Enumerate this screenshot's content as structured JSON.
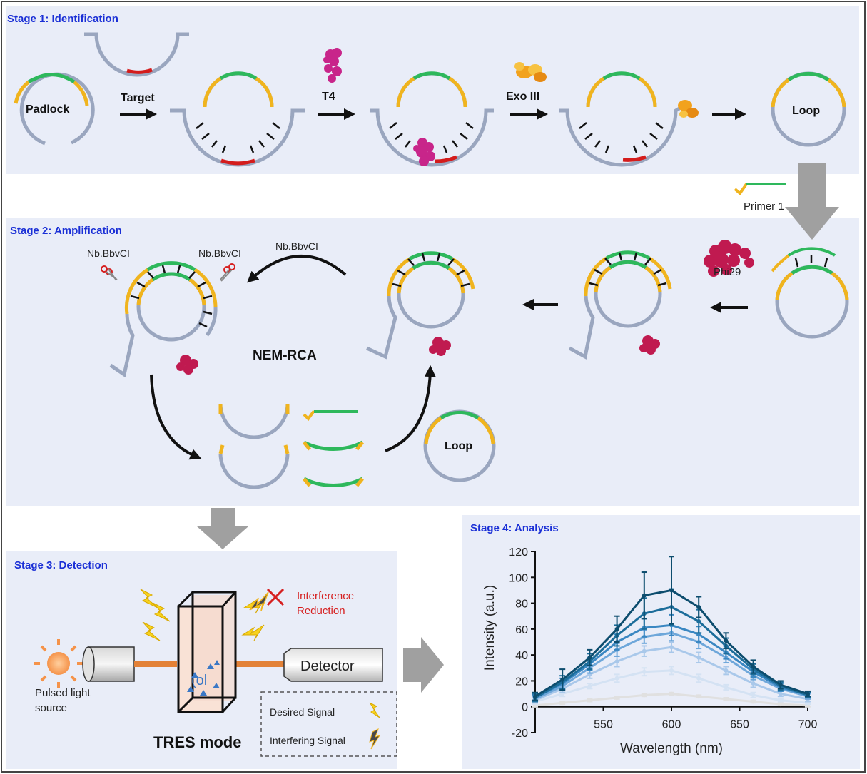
{
  "stages": {
    "s1": "Stage 1: Identification",
    "s2": "Stage 2: Amplification",
    "s3": "Stage 3: Detection",
    "s4": "Stage 4: Analysis"
  },
  "stage1": {
    "padlock": "Padlock",
    "target": "Target",
    "t4": "T4",
    "exo": "Exo III",
    "loop": "Loop",
    "primer": "Primer 1"
  },
  "stage2": {
    "nb_left": "Nb.BbvCI",
    "nb_mid": "Nb.BbvCI",
    "nb_top": "Nb.BbvCI",
    "phi": "Phi29",
    "nem": "NEM-RCA",
    "loop": "Loop"
  },
  "stage3": {
    "interference_1": "Interference",
    "interference_2": "Reduction",
    "pulsed_1": "Pulsed light",
    "pulsed_2": "source",
    "detector": "Detector",
    "tres": "TRES mode",
    "desired": "Desired Signal",
    "interfering": "Interfering Signal"
  },
  "colors": {
    "strand": "#9aa6bf",
    "yellow": "#f0b41e",
    "green": "#2eb85c",
    "red": "#d41c1c",
    "magenta": "#c8258a",
    "crimson": "#c01a50",
    "panel": "#e9edf8",
    "stage_title": "#1a2fd6"
  },
  "chart_data": {
    "type": "line",
    "title": "",
    "xlabel": "Wavelength (nm)",
    "ylabel": "Intensity (a.u.)",
    "xlim": [
      500,
      700
    ],
    "ylim": [
      -20,
      120
    ],
    "x_ticks": [
      550,
      600,
      650,
      700
    ],
    "y_ticks": [
      -20,
      0,
      20,
      40,
      60,
      80,
      100,
      120
    ],
    "x": [
      500,
      520,
      540,
      560,
      580,
      600,
      620,
      640,
      660,
      680,
      700
    ],
    "series": [
      {
        "color": "#e0e0e0",
        "values": [
          1,
          3,
          5,
          7,
          9,
          10,
          8,
          6,
          4,
          2,
          1
        ],
        "errors": [
          1,
          1,
          1,
          1,
          1,
          1,
          1,
          1,
          1,
          1,
          1
        ]
      },
      {
        "color": "#d4e2f3",
        "values": [
          4,
          10,
          16,
          22,
          27,
          28,
          22,
          15,
          9,
          5,
          3
        ],
        "errors": [
          2,
          2,
          2,
          3,
          3,
          3,
          3,
          2,
          2,
          1,
          1
        ]
      },
      {
        "color": "#a9c8ea",
        "values": [
          5,
          14,
          25,
          35,
          43,
          46,
          38,
          28,
          18,
          10,
          6
        ],
        "errors": [
          2,
          3,
          3,
          4,
          4,
          4,
          4,
          3,
          3,
          2,
          2
        ]
      },
      {
        "color": "#6ea7da",
        "values": [
          6,
          16,
          30,
          44,
          54,
          57,
          50,
          38,
          24,
          14,
          8
        ],
        "errors": [
          2,
          3,
          4,
          5,
          5,
          6,
          5,
          4,
          3,
          2,
          2
        ]
      },
      {
        "color": "#3a87c2",
        "values": [
          7,
          18,
          33,
          50,
          61,
          63,
          56,
          42,
          27,
          15,
          9
        ],
        "errors": [
          2,
          4,
          5,
          6,
          7,
          8,
          6,
          5,
          4,
          3,
          2
        ]
      },
      {
        "color": "#1c6d9a",
        "values": [
          7,
          19,
          35,
          55,
          72,
          77,
          66,
          47,
          29,
          16,
          9
        ],
        "errors": [
          3,
          5,
          6,
          8,
          12,
          14,
          9,
          6,
          4,
          3,
          2
        ]
      },
      {
        "color": "#0d4d6e",
        "values": [
          8,
          21,
          38,
          60,
          86,
          90,
          77,
          51,
          31,
          17,
          10
        ],
        "errors": [
          3,
          8,
          6,
          10,
          18,
          26,
          8,
          6,
          5,
          3,
          2
        ]
      }
    ]
  }
}
